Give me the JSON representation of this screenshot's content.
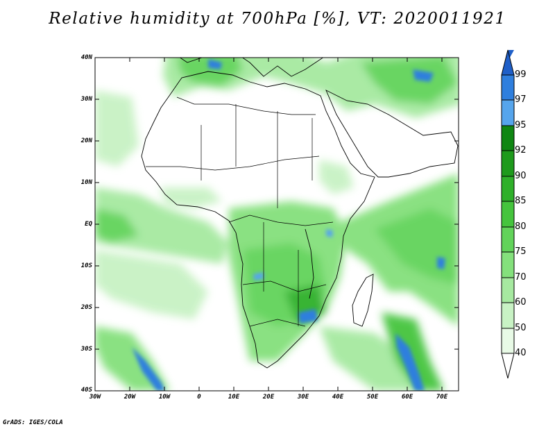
{
  "title": "Relative humidity at 700hPa [%], VT: 2020011921",
  "credit": "GrADS: IGES/COLA",
  "axes": {
    "lat_labels": [
      "40N",
      "30N",
      "20N",
      "10N",
      "EQ",
      "10S",
      "20S",
      "30S",
      "40S"
    ],
    "lon_labels": [
      "30W",
      "20W",
      "10W",
      "0",
      "10E",
      "20E",
      "30E",
      "40E",
      "50E",
      "60E",
      "70E"
    ]
  },
  "colorbar": {
    "levels": [
      "40",
      "50",
      "60",
      "70",
      "75",
      "80",
      "85",
      "90",
      "92",
      "95",
      "97",
      "99"
    ],
    "colors": [
      "#ffffff",
      "#e8fae6",
      "#c8f2c4",
      "#a6e9a0",
      "#84e07c",
      "#62d35a",
      "#45c43d",
      "#2fb02a",
      "#1e9a1c",
      "#0f8612",
      "#56a5ec",
      "#2f7fde",
      "#1f5fc8"
    ]
  },
  "map": {
    "region": "Africa",
    "colors": {
      "coast": "#000000",
      "background": "#ffffff"
    }
  }
}
